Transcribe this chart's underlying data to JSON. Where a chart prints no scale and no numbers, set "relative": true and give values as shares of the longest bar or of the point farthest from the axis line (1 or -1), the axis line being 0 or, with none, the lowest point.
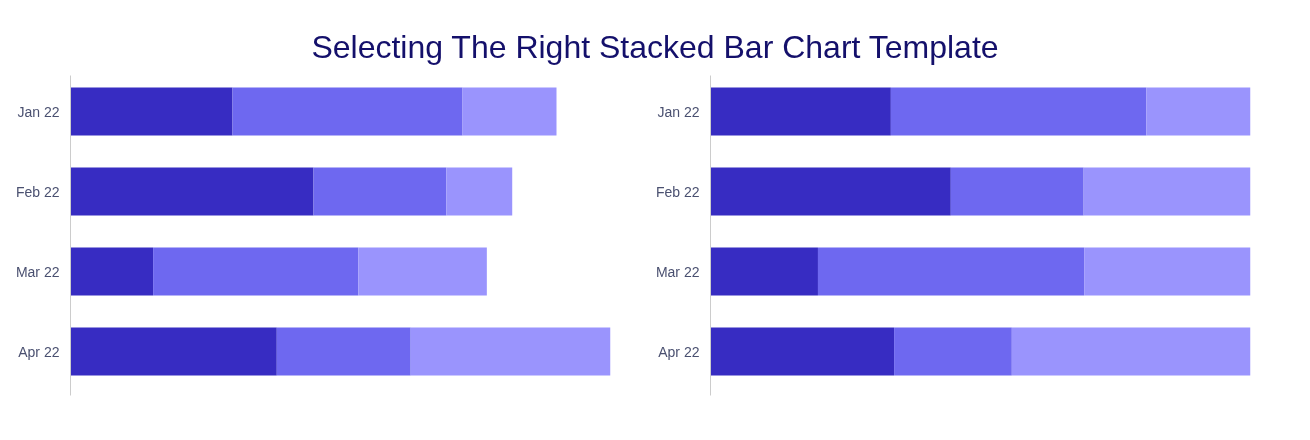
{
  "chart_data": [
    {
      "type": "bar",
      "orientation": "horizontal",
      "stacked": true,
      "relative": true,
      "title": "Selecting The Right Stacked Bar Chart Template",
      "categories": [
        "Jan 22",
        "Feb 22",
        "Mar 22",
        "Apr 22"
      ],
      "series": [
        {
          "color": "#372cc2",
          "values": [
            0.3,
            0.45,
            0.153,
            0.382
          ]
        },
        {
          "color": "#6e68f0",
          "values": [
            0.426,
            0.246,
            0.38,
            0.248
          ]
        },
        {
          "color": "#9a94fd",
          "values": [
            0.174,
            0.122,
            0.238,
            0.37
          ]
        }
      ]
    },
    {
      "type": "bar",
      "orientation": "horizontal",
      "stacked": true,
      "relative": true,
      "categories": [
        "Jan 22",
        "Feb 22",
        "Mar 22",
        "Apr 22"
      ],
      "series": [
        {
          "color": "#372cc2",
          "values": [
            0.334,
            0.445,
            0.199,
            0.34
          ]
        },
        {
          "color": "#6e68f0",
          "values": [
            0.473,
            0.246,
            0.493,
            0.218
          ]
        },
        {
          "color": "#9a94fd",
          "values": [
            0.193,
            0.309,
            0.308,
            0.442
          ]
        }
      ]
    }
  ]
}
